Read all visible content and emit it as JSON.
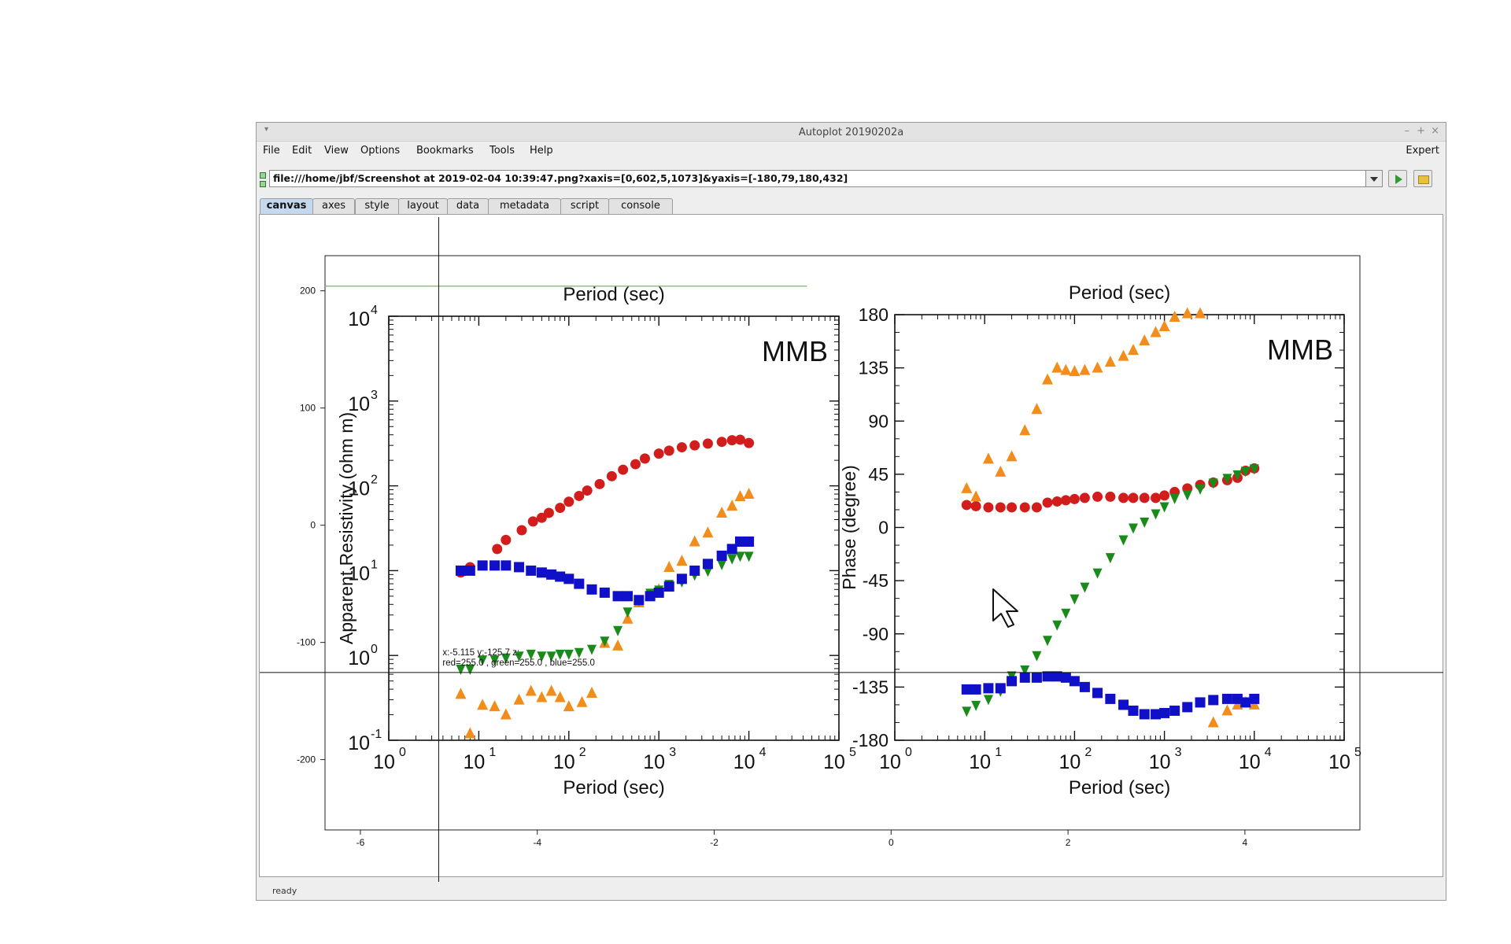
{
  "window": {
    "title": "Autoplot 20190202a",
    "menu": [
      "File",
      "Edit",
      "View",
      "Options",
      "Bookmarks",
      "Tools",
      "Help"
    ],
    "expert_label": "Expert",
    "url": "file:///home/jbf/Screenshot at 2019-02-04 10:39:47.png?xaxis=[0,602,5,1073]&yaxis=[-180,79,180,432]",
    "tabs": [
      "canvas",
      "axes",
      "style",
      "layout",
      "data",
      "metadata",
      "script",
      "console"
    ],
    "active_tab": "canvas",
    "status": "ready",
    "controls": {
      "minimize": "–",
      "maximize": "+",
      "close": "×",
      "sysmenu": "▾"
    }
  },
  "readout": {
    "line1": "x:-5.115  y:-125.7  z:",
    "line2": "red=255.0 , green=255.0 , blue=255.0"
  },
  "chart_data": [
    {
      "type": "scatter",
      "title": "",
      "xlabel": "",
      "ylabel": "",
      "xlim": [
        -6.4,
        5.3
      ],
      "ylim": [
        -260,
        230
      ],
      "x_ticks": [
        "-6",
        "-4",
        "-2",
        "0",
        "2",
        "4"
      ],
      "y_ticks": [
        "200",
        "100",
        "0",
        "-100",
        "-200"
      ],
      "cursor": {
        "x": -5.115,
        "y": -125.7
      },
      "reference_line": {
        "y": 204,
        "x_range": [
          -6.4,
          -0.95
        ],
        "color": "#7fb26a"
      }
    },
    {
      "type": "scatter",
      "title": "MMB",
      "top_label": "Period (sec)",
      "xlabel": "Period (sec)",
      "ylabel": "Apparent Resistivity (ohm m)",
      "x_log": true,
      "y_log": true,
      "xlim": [
        1,
        100000
      ],
      "ylim": [
        0.1,
        10000
      ],
      "x_ticks": [
        "10",
        "10",
        "10",
        "10",
        "10",
        "10"
      ],
      "x_tick_exp": [
        "0",
        "1",
        "2",
        "3",
        "4",
        "5"
      ],
      "y_ticks": [
        "10",
        "10",
        "10",
        "10",
        "10",
        "10"
      ],
      "y_tick_exp": [
        "-1",
        "0",
        "1",
        "2",
        "3",
        "4"
      ],
      "series": [
        {
          "color": "#d21d1d",
          "marker": "circle",
          "x": [
            6.3,
            8,
            16,
            20,
            30,
            40,
            50,
            60,
            80,
            100,
            130,
            160,
            220,
            300,
            400,
            550,
            700,
            1000,
            1300,
            1800,
            2500,
            3500,
            5000,
            6500,
            8000,
            10000
          ],
          "y": [
            9.5,
            11,
            18,
            23,
            30,
            38,
            42,
            48,
            55,
            65,
            76,
            88,
            105,
            130,
            155,
            180,
            210,
            240,
            260,
            285,
            300,
            315,
            330,
            345,
            350,
            320
          ]
        },
        {
          "color": "#f28c1a",
          "marker": "triangle",
          "x": [
            6.3,
            8,
            11,
            15,
            20,
            28,
            38,
            50,
            64,
            80,
            100,
            140,
            180,
            250,
            350,
            450,
            600,
            800,
            1000,
            1300,
            1800,
            2500,
            3500,
            5000,
            6500,
            8000,
            10000
          ],
          "y": [
            0.35,
            0.12,
            0.26,
            0.25,
            0.2,
            0.3,
            0.38,
            0.32,
            0.38,
            0.32,
            0.25,
            0.28,
            0.36,
            1.4,
            1.3,
            2.7,
            4.2,
            5.2,
            6,
            11,
            13,
            22,
            28,
            48,
            58,
            75,
            80
          ]
        },
        {
          "color": "#1a8a1a",
          "marker": "triangle-down",
          "x": [
            6.3,
            8,
            11,
            15,
            20,
            28,
            38,
            50,
            64,
            80,
            100,
            130,
            180,
            250,
            350,
            450,
            600,
            800,
            1000,
            1300,
            1800,
            2500,
            3500,
            5000,
            6500,
            8000,
            10000
          ],
          "y": [
            0.7,
            0.7,
            0.9,
            0.9,
            0.95,
            1.0,
            1.05,
            1.0,
            1.0,
            1.05,
            1.05,
            1.1,
            1.2,
            1.5,
            2,
            3.3,
            4.5,
            5.5,
            6,
            7,
            7.5,
            9,
            10,
            12,
            14,
            15,
            15
          ]
        },
        {
          "color": "#1010c8",
          "marker": "square",
          "x": [
            6.3,
            8,
            11,
            15,
            20,
            28,
            38,
            50,
            64,
            80,
            100,
            130,
            180,
            250,
            350,
            450,
            600,
            800,
            1000,
            1300,
            1800,
            2500,
            3500,
            5000,
            6500,
            8000,
            10000
          ],
          "y": [
            10,
            10,
            11.5,
            11.5,
            11.5,
            11,
            10,
            9.5,
            9,
            8.5,
            8,
            7,
            6,
            5.5,
            5,
            5,
            4.5,
            5,
            5.5,
            6.5,
            8,
            10,
            12,
            15,
            18,
            22,
            22
          ]
        }
      ]
    },
    {
      "type": "scatter",
      "title": "MMB",
      "top_label": "Period (sec)",
      "xlabel": "Period (sec)",
      "ylabel": "Phase (degree)",
      "x_log": true,
      "xlim": [
        1,
        100000
      ],
      "ylim": [
        -180,
        180
      ],
      "x_ticks": [
        "10",
        "10",
        "10",
        "10",
        "10",
        "10"
      ],
      "x_tick_exp": [
        "0",
        "1",
        "2",
        "3",
        "4",
        "5"
      ],
      "y_ticks": [
        "180",
        "135",
        "90",
        "45",
        "0",
        "-45",
        "-90",
        "-135",
        "-180"
      ],
      "series": [
        {
          "color": "#d21d1d",
          "marker": "circle",
          "x": [
            6.3,
            8,
            11,
            15,
            20,
            28,
            38,
            50,
            64,
            80,
            100,
            130,
            180,
            250,
            350,
            450,
            600,
            800,
            1000,
            1300,
            1800,
            2500,
            3500,
            5000,
            6500,
            8000,
            10000
          ],
          "y": [
            19,
            18,
            17,
            17,
            17,
            17,
            17,
            21,
            22,
            23,
            24,
            25,
            26,
            26,
            25,
            25,
            25,
            25,
            27,
            30,
            33,
            36,
            38,
            40,
            42,
            48,
            50
          ]
        },
        {
          "color": "#f28c1a",
          "marker": "triangle",
          "x": [
            6.3,
            8,
            11,
            15,
            20,
            28,
            38,
            50,
            64,
            80,
            100,
            130,
            180,
            250,
            350,
            450,
            600,
            800,
            1000,
            1300,
            1800,
            2500,
            3500,
            5000,
            6500,
            8000,
            10000
          ],
          "y": [
            33,
            26,
            58,
            47,
            60,
            82,
            100,
            125,
            135,
            133,
            132,
            133,
            135,
            140,
            145,
            150,
            158,
            165,
            170,
            178,
            181,
            181,
            -165,
            -155,
            -150,
            -148,
            -150
          ]
        },
        {
          "color": "#1a8a1a",
          "marker": "triangle-down",
          "x": [
            6.3,
            8,
            11,
            15,
            20,
            28,
            38,
            50,
            64,
            80,
            100,
            130,
            180,
            250,
            350,
            450,
            600,
            800,
            1000,
            1300,
            1800,
            2500,
            3500,
            5000,
            6500,
            8000,
            10000
          ],
          "y": [
            -155,
            -150,
            -145,
            -138,
            -125,
            -120,
            -108,
            -95,
            -82,
            -72,
            -60,
            -50,
            -38,
            -25,
            -10,
            0,
            5,
            12,
            18,
            25,
            28,
            33,
            38,
            42,
            45,
            48,
            50
          ]
        },
        {
          "color": "#1010c8",
          "marker": "square",
          "x": [
            6.3,
            8,
            11,
            15,
            20,
            28,
            38,
            50,
            64,
            80,
            100,
            130,
            180,
            250,
            350,
            450,
            600,
            800,
            1000,
            1300,
            1800,
            2500,
            3500,
            5000,
            6500,
            8000,
            10000
          ],
          "y": [
            -137,
            -137,
            -136,
            -136,
            -130,
            -127,
            -127,
            -126,
            -126,
            -127,
            -130,
            -135,
            -140,
            -145,
            -150,
            -155,
            -158,
            -158,
            -157,
            -155,
            -152,
            -148,
            -146,
            -145,
            -145,
            -148,
            -145
          ]
        }
      ]
    }
  ]
}
